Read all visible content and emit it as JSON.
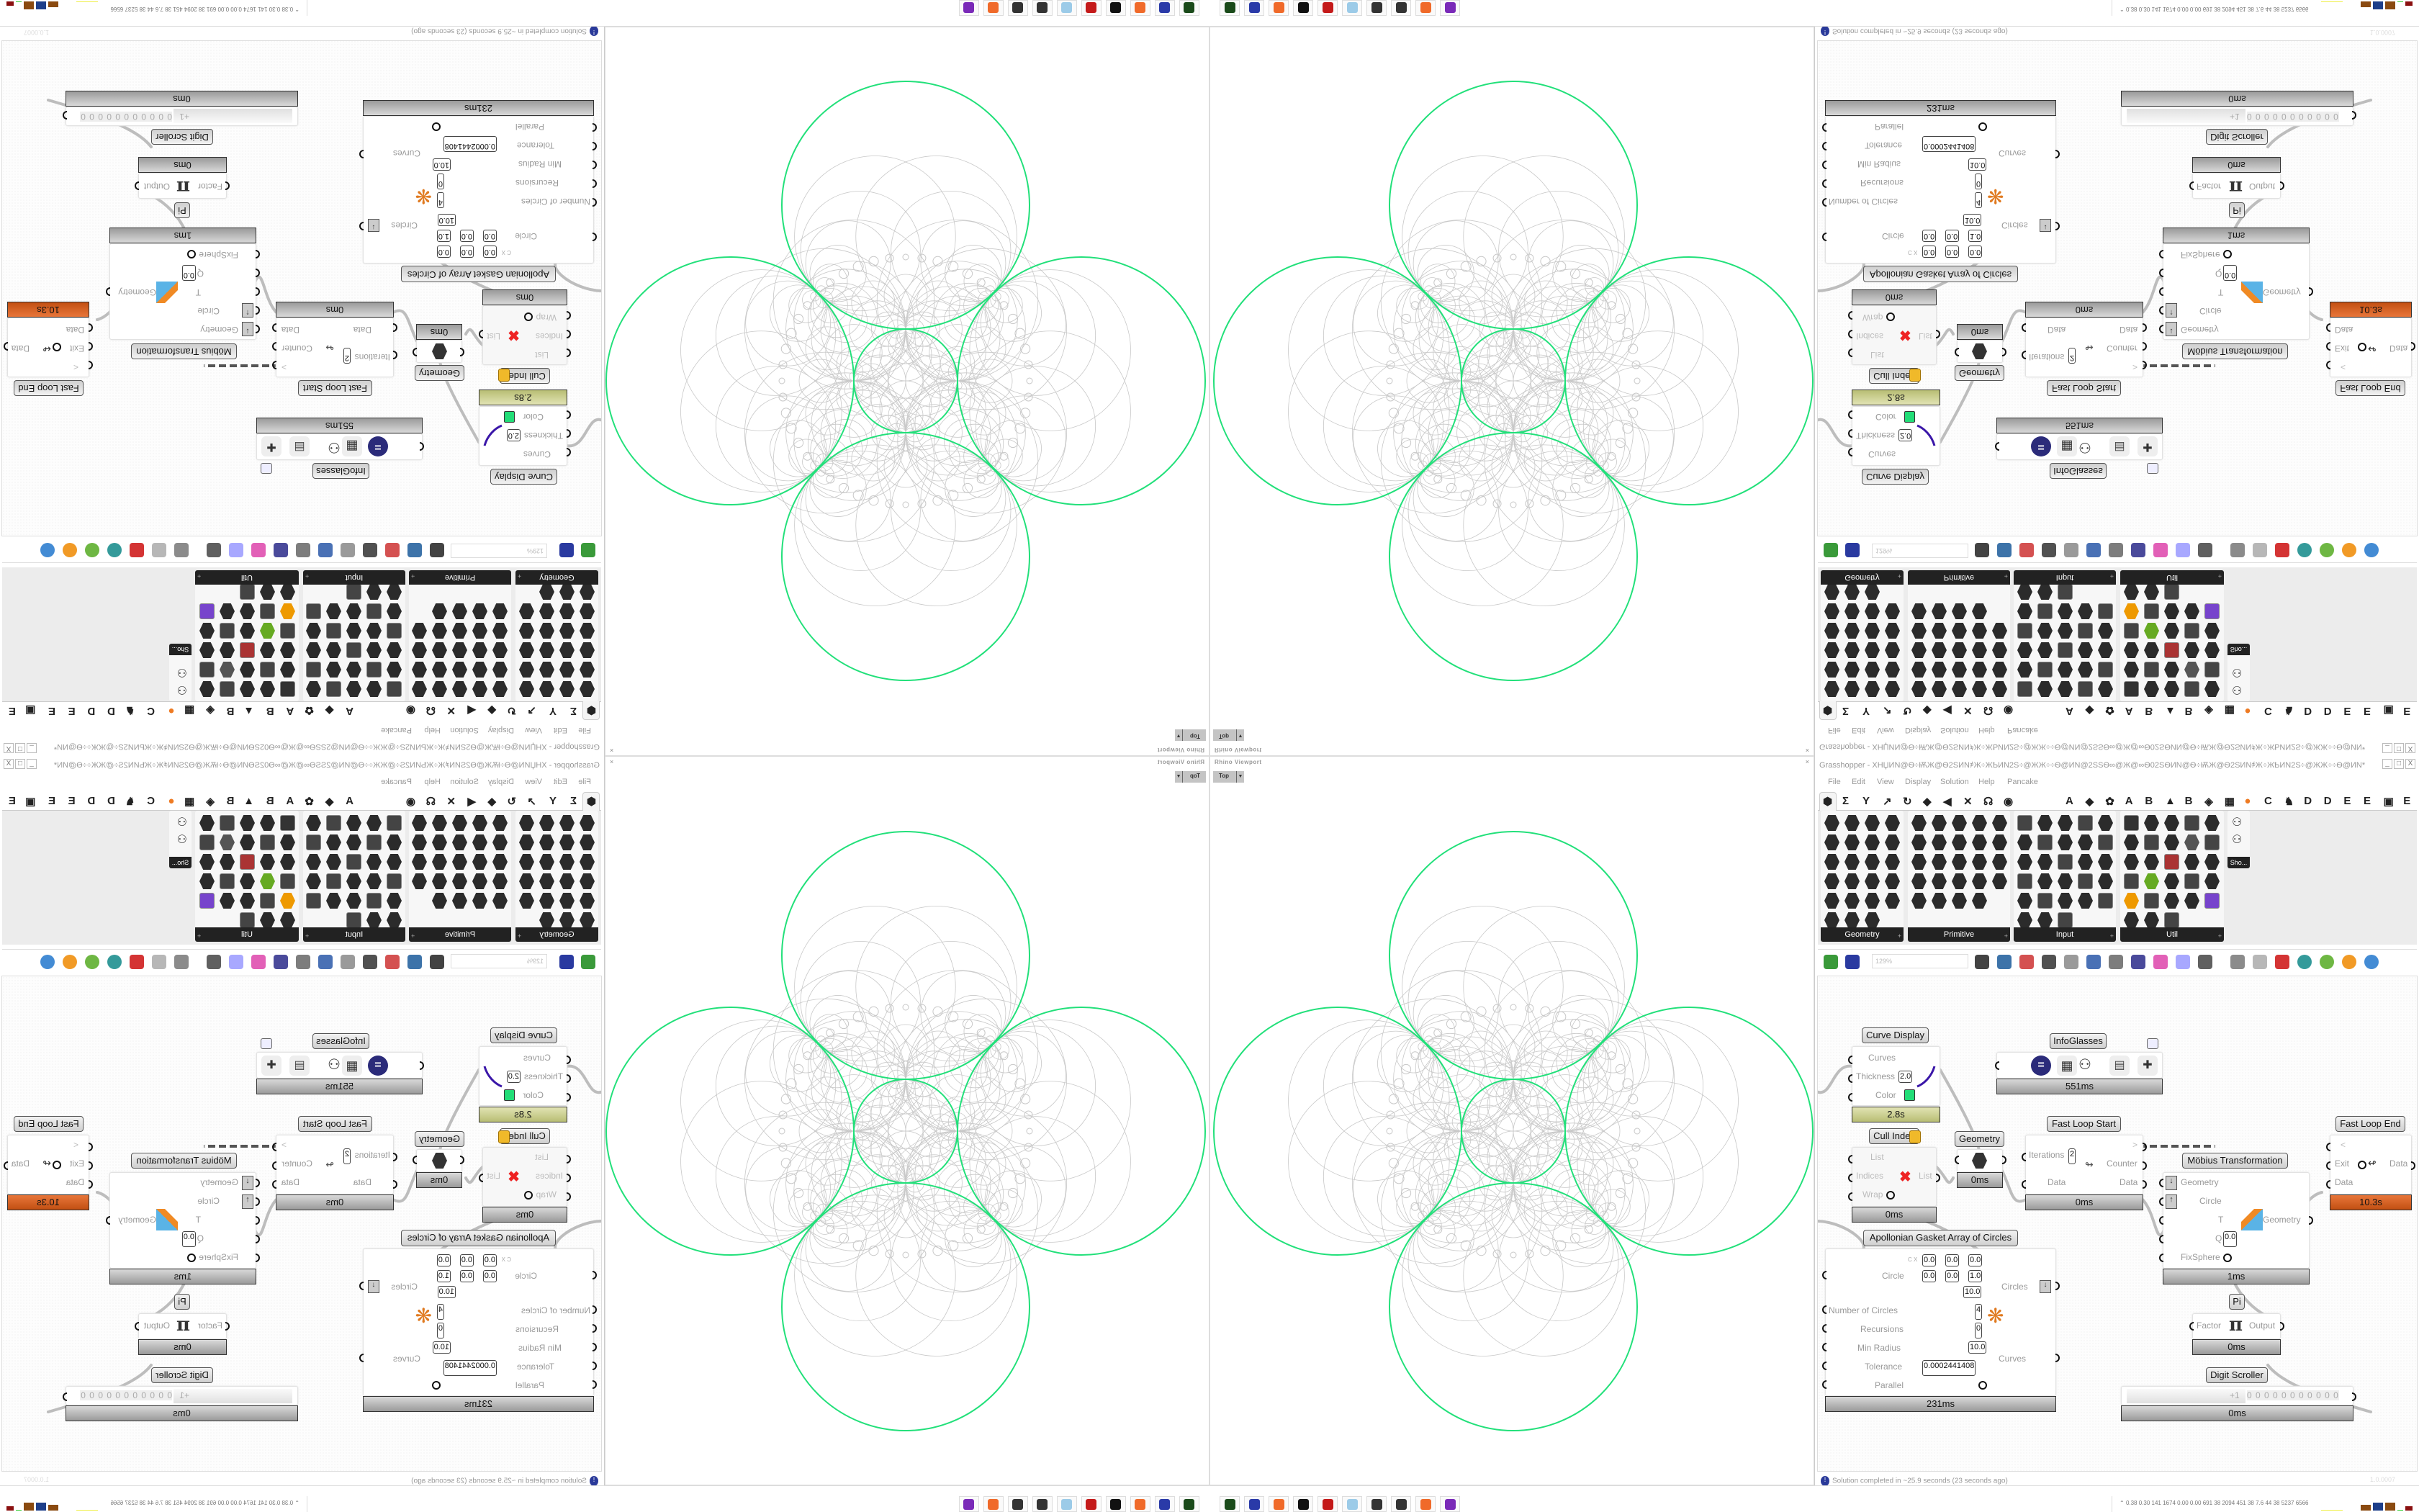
{
  "viewport": {
    "title": "Rhino Viewport",
    "view": "Top",
    "close": "×",
    "accent": "#22e07a",
    "fractal_color": "#c8c8c8"
  },
  "grasshopper": {
    "title": "Grasshopper - XHЏИN@Ѳ÷ѬЖ@Ѳ2SИN҂Ж÷ЖҌИN2S÷@ЖЖ÷÷Ѳ@ИN@2SЅѲ∞@Ж@∞Ѳ02SѲИN@Ѳ÷ѬЖ@Ѳ2SИN҂Ж÷ЖҌИN2S÷@ЖЖ÷÷Ѳ@ИN*",
    "window_controls": [
      "_",
      "□",
      "X"
    ],
    "menu": [
      "File",
      "Edit",
      "View",
      "Display",
      "Solution",
      "Help",
      "Pancake"
    ],
    "tab_glyphs": [
      "Σ",
      "Y",
      "↗",
      "↻",
      "◆",
      "◀",
      "✕",
      "☊",
      "◉"
    ],
    "tab_letters": [
      "A",
      "◆",
      "✿",
      "A",
      "B",
      "▲",
      "B",
      "◈",
      "▦",
      "●",
      "C",
      "♞",
      "D",
      "D",
      "E",
      "E",
      "▣",
      "E"
    ],
    "palette_panels": [
      "Geometry",
      "Primitive",
      "Input",
      "Util"
    ],
    "palette_overflow": "Sho...",
    "zoom": "129%",
    "status": "Solution completed in ~25.9 seconds (23 seconds ago)",
    "status_icon": "info-icon",
    "version": "1.0.0007"
  },
  "components": {
    "curve_display": {
      "label": "Curve Display",
      "inputs": [
        "Curves",
        "Thickness",
        "Color"
      ],
      "thickness": "2.0",
      "color": "#22dd77",
      "time": "2.8s"
    },
    "infoglasses": {
      "label": "InfoGlasses",
      "time": "551ms"
    },
    "cull_index": {
      "label": "Cull Index",
      "inputs": [
        "List",
        "Indices",
        "Wrap"
      ],
      "output": "List",
      "time": "0ms"
    },
    "geometry": {
      "label": "Geometry",
      "time": "0ms"
    },
    "fast_loop_start": {
      "label": "Fast Loop Start",
      "iterations_label": "Iterations",
      "iterations": "2",
      "data_in": "Data",
      "outputs": [
        ">",
        "Counter",
        "Data"
      ],
      "time": "0ms"
    },
    "fast_loop_end": {
      "label": "Fast Loop End",
      "inputs": [
        "<",
        "Exit",
        "Data"
      ],
      "output": "Data",
      "time": "10.3s"
    },
    "mobius": {
      "label": "Möbius Transformation",
      "inputs": [
        "Geometry",
        "Circle",
        "T",
        "Q",
        "FixSphere"
      ],
      "q": "0.0",
      "output": "Geometry",
      "time": "1ms"
    },
    "apollonian": {
      "label": "Apollonian Gasket Array of Circles",
      "circle_label": "Circle",
      "c": {
        "x": "0.0",
        "y": "0.0",
        "z": "0.0"
      },
      "n": {
        "x": "0.0",
        "y": "0.0",
        "z": "1.0"
      },
      "r": "10.0",
      "inputs": [
        "Number of Circles",
        "Recursions",
        "Min Radius",
        "Tolerance",
        "Parallel"
      ],
      "number_of_circles": "4",
      "recursions": "0",
      "min_radius": "10.0",
      "tolerance": "0.0002441408",
      "outputs": [
        "Circles",
        "Curves"
      ],
      "time": "231ms"
    },
    "pi": {
      "label": "Pi",
      "input": "Factor",
      "output": "Output",
      "time": "0ms"
    },
    "digit_scroller": {
      "label": "Digit Scroller",
      "sign": "+1",
      "digits": "0 0 0 0 0 0 0 0 0 0 0",
      "time": "0ms"
    }
  },
  "taskbar": {
    "apps": [
      "terminal-icon",
      "save-64-icon",
      "firefox-icon",
      "rhino-icon",
      "debugger-icon",
      "notepad-icon",
      "grasshopper-icon",
      "grasshopper-icon",
      "firefox-icon",
      "chat-icon"
    ],
    "tray_stats": "0.38 0.30 141 1674 0.00 0.00 691 38 2094 451 38 7.6 44 38 5237 6566"
  }
}
